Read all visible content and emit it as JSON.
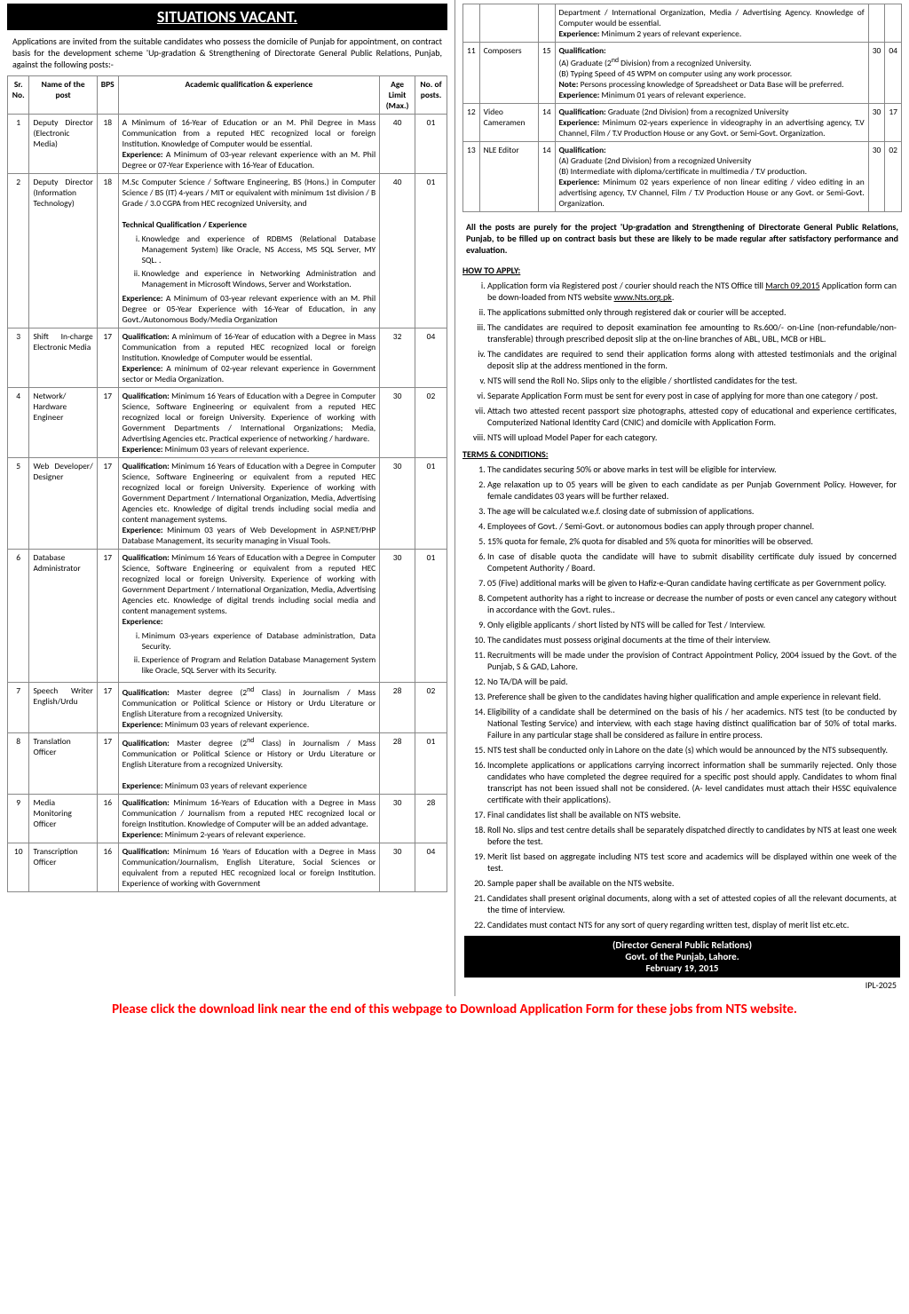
{
  "title": "SITUATIONS VACANT.",
  "intro": "Applications are invited from the suitable candidates who possess the domicile of Punjab for appointment, on contract basis for the development scheme 'Up-gradation & Strengthening of Directorate General Public Relations, Punjab, against the following posts:-",
  "headers": {
    "sr": "Sr. No.",
    "name": "Name of the post",
    "bps": "BPS",
    "qual": "Academic qualification & experience",
    "age": "Age Limit (Max.)",
    "posts": "No. of posts."
  },
  "rows_left": [
    {
      "sr": "1",
      "name": "Deputy Director (Electronic Media)",
      "bps": "18",
      "qual": "A Minimum of 16-Year of Education or an M. Phil Degree in Mass Communication from a reputed HEC recognized local or foreign Institution. Knowledge of Computer would be essential.<br><b>Experience:</b> A Minimum of 03-year relevant experience with an M. Phil Degree or 07-Year Experience with 16-Year of Education.",
      "age": "40",
      "posts": "01"
    },
    {
      "sr": "2",
      "name": "Deputy Director (Information Technology)",
      "bps": "18",
      "qual": "M.Sc Computer Science / Software Engineering, BS (Hons.) in Computer Science / BS (IT) 4-years / MIT or equivalent with minimum 1st division / B Grade / 3.0 CGPA from HEC recognized University, and<br><br><b>Technical Qualification / Experience</b><br><ol class='inner'><li>Knowledge and experience of RDBMS (Relational Database Management System) like Oracle, NS Access, MS SQL Server, MY SQL. .</li><li>Knowledge and experience in Networking Administration and Management in Microsoft Windows, Server and Workstation.</li></ol><b>Experience:</b> A Minimum of 03-year relevant experience with an M. Phil Degree or 05-Year Experience with 16-Year of Education, in any Govt./Autonomous Body/Media Organization",
      "age": "40",
      "posts": "01"
    },
    {
      "sr": "3",
      "name": "Shift In-charge Electronic Media",
      "bps": "17",
      "qual": "<b>Qualification:</b> A minimum of 16-Year of education with a Degree in Mass Communication from a reputed HEC recognized local or foreign Institution. Knowledge of Computer would be essential.<br><b>Experience:</b> A minimum of 02-year relevant experience in Government sector or Media Organization.",
      "age": "32",
      "posts": "04"
    },
    {
      "sr": "4",
      "name": "Network/ Hardware Engineer",
      "bps": "17",
      "qual": "<b>Qualification:</b> Minimum 16 Years of Education with a Degree in Computer Science, Software Engineering or equivalent from a reputed HEC recognized local or foreign University. Experience of working with Government Departments / International Organizations; Media, Advertising Agencies etc. Practical experience of networking / hardware.<br><b>Experience:</b> Minimum 03 years of relevant experience.",
      "age": "30",
      "posts": "02"
    },
    {
      "sr": "5",
      "name": "Web Developer/ Designer",
      "bps": "17",
      "qual": "<b>Qualification:</b> Minimum 16 Years of Education with a Degree in Computer Science, Software Engineering or equivalent from a reputed HEC recognized local or foreign University. Experience of working with Government Department / International Organization, Media, Advertising Agencies etc. Knowledge of digital trends including social media and content management systems.<br><b>Experience:</b> Minimum 03 years of Web Development in ASP.NET/PHP Database Management, its security managing in Visual Tools.",
      "age": "30",
      "posts": "01"
    },
    {
      "sr": "6",
      "name": "Database Administrator",
      "bps": "17",
      "qual": "<b>Qualification:</b> Minimum 16 Years of Education with a Degree in Computer Science, Software Engineering or equivalent from a reputed HEC recognized local or foreign University. Experience of working with Government Department / International Organization, Media, Advertising Agencies etc. Knowledge of digital trends including social media and content management systems.<br><b>Experience:</b><ol class='inner'><li>Minimum 03-years experience of Database administration, Data Security.</li><li>Experience of Program and Relation Database Management System like Oracle, SQL Server with its Security.</li></ol>",
      "age": "30",
      "posts": "01"
    },
    {
      "sr": "7",
      "name": "Speech Writer English/Urdu",
      "bps": "17",
      "qual": "<b>Qualification:</b> Master degree (2<sup>nd</sup> Class) in Journalism / Mass Communication or Political Science or History or Urdu Literature or English Literature from a recognized University.<br><b>Experience:</b> Minimum 03 years of relevant experience.",
      "age": "28",
      "posts": "02"
    },
    {
      "sr": "8",
      "name": "Translation Officer",
      "bps": "17",
      "qual": "<b>Qualification:</b> Master degree (2<sup>nd</sup> Class) in Journalism / Mass Communication or Political Science or History or Urdu Literature or English Literature from a recognized University.<br><br><b>Experience:</b> Minimum 03 years of relevant experience",
      "age": "28",
      "posts": "01"
    },
    {
      "sr": "9",
      "name": "Media Monitoring Officer",
      "bps": "16",
      "qual": "<b>Qualification:</b> Minimum 16-Years of Education with a Degree in Mass Communication / Journalism from a reputed HEC recognized local or foreign Institution. Knowledge of Computer will be an added advantage.<br><b>Experience:</b> Minimum 2-years of relevant experience.",
      "age": "30",
      "posts": "28"
    },
    {
      "sr": "10",
      "name": "Transcription Officer",
      "bps": "16",
      "qual": "<b>Qualification:</b> Minimum 16 Years of Education with a Degree in Mass Communication/Journalism, English Literature, Social Sciences or equivalent from a reputed HEC recognized local or foreign Institution. Experience of working with Government",
      "age": "30",
      "posts": "04"
    }
  ],
  "rows_right": [
    {
      "sr": "",
      "name": "",
      "bps": "",
      "qual": "Department / International Organization, Media / Advertising Agency. Knowledge of Computer would be essential.<br><b>Experience:</b> Minimum 2 years of relevant experience.",
      "age": "",
      "posts": ""
    },
    {
      "sr": "11",
      "name": "Composers",
      "bps": "15",
      "qual": "<b>Qualification:</b><br>(A) Graduate (2<sup>nd</sup> Division) from a recognized University.<br>(B) Typing Speed of 45 WPM on computer using any work processor.<br><b>Note:</b> Persons processing knowledge of Spreadsheet or Data Base will be preferred.<br><b>Experience:</b> Minimum 01 years of relevant experience.",
      "age": "30",
      "posts": "04"
    },
    {
      "sr": "12",
      "name": "Video Cameramen",
      "bps": "14",
      "qual": "<b>Qualification:</b> Graduate (2nd Division) from a recognized University<br><b>Experience:</b> Minimum 02-years experience in videography in an advertising agency, T.V Channel, Film / T.V Production House or any Govt. or Semi-Govt. Organization.",
      "age": "30",
      "posts": "17"
    },
    {
      "sr": "13",
      "name": "NLE Editor",
      "bps": "14",
      "qual": "<b>Qualification:</b><br>(A) Graduate (2nd Division) from a recognized University<br>(B) Intermediate with diploma/certificate in multimedia / T.V production.<br><b>Experience:</b> Minimum 02 years experience of non linear editing / video editing in an advertising agency, T.V Channel, Film / T.V Production House or any Govt. or Semi-Govt. Organization.",
      "age": "30",
      "posts": "02"
    }
  ],
  "project_note": "All the posts are purely for the project 'Up-gradation and Strengthening of Directorate General Public Relations, Punjab, to be filled up on contract basis but these are likely to be made regular after satisfactory performance and evaluation.",
  "how_to_apply_head": "HOW TO APPLY:",
  "apply": [
    "Application form via Registered post / courier should reach the NTS Office till <u>March 09,2015</u> Application form can be down-loaded from NTS website <u>www.Nts.org.pk</u>.",
    "The applications submitted only through registered dak or courier will be accepted.",
    "The candidates are required to deposit examination fee amounting to Rs.600/- on-Line (non-refundable/non-transferable) through prescribed deposit slip at the on-line branches of ABL, UBL, MCB or HBL.",
    "The candidates are required to send their application forms along with attested testimonials and the original deposit slip at the address mentioned in the form.",
    "NTS will send the Roll No. Slips only to the eligible / shortlisted candidates for the test.",
    "Separate Application Form must be sent for every post in case of applying for more than one category / post.",
    "Attach two attested recent passport size photographs, attested copy of educational and experience certificates, Computerized National Identity Card (CNIC) and domicile with Application Form.",
    "NTS will upload Model Paper for each category."
  ],
  "terms_head": "TERMS & CONDITIONS:",
  "terms": [
    "The candidates securing 50% or above marks in test will be eligible for interview.",
    "Age relaxation up to 05 years will be given to each candidate as per Punjab Government Policy. However, for female candidates 03 years will be further relaxed.",
    "The age will be calculated w.e.f. closing date of submission of applications.",
    "Employees of Govt. / Semi-Govt. or autonomous bodies can apply through proper channel.",
    "15% quota for female, 2% quota for disabled and 5% quota for minorities will be observed.",
    "In case of disable quota the candidate will have to submit disability certificate duly issued by concerned Competent Authority / Board.",
    "05 (Five) additional marks will be given to Hafiz-e-Quran candidate having certificate as per Government policy.",
    "Competent authority has a right to increase or decrease the number of posts or even cancel any category without in accordance with the Govt. rules..",
    "Only eligible applicants / short listed by NTS will be called for Test / Interview.",
    "The candidates must possess original documents at the time of their interview.",
    "Recruitments will be made under the provision of Contract Appointment Policy, 2004 issued by the Govt. of the Punjab, S & GAD, Lahore.",
    "No TA/DA will be paid.",
    "Preference shall be given to the candidates having higher qualification and ample experience in relevant field.",
    "Eligibility of a candidate shall be determined on the basis of his / her academics. NTS test (to be conducted by National Testing Service) and interview, with each stage having distinct qualification bar of 50% of total marks. Failure in any particular stage shall be considered as failure in entire process.",
    "NTS test shall be conducted only in Lahore on the date (s) which would be announced by the NTS subsequently.",
    "Incomplete applications or applications carrying incorrect information shall be summarily rejected. Only those candidates who have completed the degree required for a specific post should apply. Candidates to whom final transcript has not been issued shall not be considered. (A- level candidates must attach their HSSC equivalence certificate with their applications).",
    "Final candidates list shall be available on NTS website.",
    "Roll No. slips and test centre details shall be separately dispatched directly to candidates by NTS at least one week before the test.",
    "Merit list based on aggregate including NTS test score and academics will be displayed within one week of the test.",
    "Sample paper shall be available on the NTS website.",
    "Candidates shall present original documents, along with a set of attested copies of all the relevant documents, at the time of interview.",
    "Candidates must contact NTS for any sort of query regarding written test, display of merit list etc.etc."
  ],
  "sig1": "(Director General Public Relations)",
  "sig2": "Govt. of the Punjab, Lahore.",
  "sig3": "February 19, 2015",
  "ipl": "IPL-2025",
  "footer": "Please click the download link near the end of this webpage to Download Application Form for these jobs from NTS website."
}
